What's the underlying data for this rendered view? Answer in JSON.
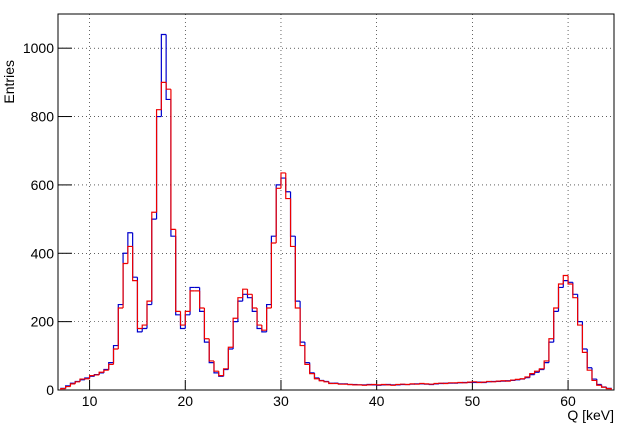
{
  "chart_data": {
    "type": "histogram",
    "xlabel": "Q [keV]",
    "ylabel": "Entries",
    "xlim": [
      6.7,
      64.8
    ],
    "ylim": [
      0,
      1100
    ],
    "xticks": [
      10,
      20,
      30,
      40,
      50,
      60
    ],
    "yticks": [
      0,
      200,
      400,
      600,
      800,
      1000
    ],
    "grid": true,
    "bins": [
      7,
      7.5,
      8,
      8.5,
      9,
      9.5,
      10,
      10.5,
      11,
      11.5,
      12,
      12.5,
      13,
      13.5,
      14,
      14.5,
      15,
      15.5,
      16,
      16.5,
      17,
      17.5,
      18,
      18.5,
      19,
      19.5,
      20,
      20.5,
      21,
      21.5,
      22,
      22.5,
      23,
      23.5,
      24,
      24.5,
      25,
      25.5,
      26,
      26.5,
      27,
      27.5,
      28,
      28.5,
      29,
      29.5,
      30,
      30.5,
      31,
      31.5,
      32,
      32.5,
      33,
      33.5,
      34,
      34.5,
      35,
      35.5,
      36,
      36.5,
      37,
      37.5,
      38,
      38.5,
      39,
      39.5,
      40,
      40.5,
      41,
      41.5,
      42,
      42.5,
      43,
      43.5,
      44,
      44.5,
      45,
      45.5,
      46,
      46.5,
      47,
      47.5,
      48,
      48.5,
      49,
      49.5,
      50,
      50.5,
      51,
      51.5,
      52,
      52.5,
      53,
      53.5,
      54,
      54.5,
      55,
      55.5,
      56,
      56.5,
      57,
      57.5,
      58,
      58.5,
      59,
      59.5,
      60,
      60.5,
      61,
      61.5,
      62,
      62.5,
      63,
      63.5,
      64,
      64.5
    ],
    "series": [
      {
        "color": "#0000cc",
        "values": [
          5,
          12,
          20,
          25,
          30,
          35,
          40,
          45,
          50,
          60,
          80,
          130,
          250,
          400,
          460,
          330,
          170,
          180,
          250,
          500,
          800,
          1040,
          850,
          450,
          220,
          180,
          220,
          300,
          300,
          230,
          140,
          80,
          50,
          40,
          60,
          120,
          200,
          260,
          280,
          270,
          230,
          180,
          170,
          250,
          450,
          600,
          620,
          580,
          450,
          260,
          140,
          80,
          50,
          35,
          28,
          25,
          20,
          20,
          18,
          18,
          16,
          16,
          15,
          15,
          16,
          15,
          14,
          15,
          16,
          15,
          15,
          16,
          16,
          17,
          18,
          18,
          17,
          16,
          18,
          19,
          20,
          20,
          20,
          21,
          22,
          22,
          22,
          23,
          22,
          24,
          25,
          25,
          26,
          27,
          28,
          30,
          32,
          36,
          45,
          52,
          60,
          80,
          140,
          230,
          300,
          320,
          315,
          280,
          200,
          120,
          65,
          32,
          16,
          9,
          5
        ]
      },
      {
        "color": "#ee0000",
        "values": [
          4,
          10,
          18,
          24,
          32,
          33,
          42,
          44,
          52,
          58,
          75,
          120,
          240,
          370,
          420,
          320,
          180,
          190,
          260,
          520,
          820,
          900,
          880,
          470,
          230,
          190,
          230,
          290,
          290,
          240,
          150,
          85,
          55,
          42,
          62,
          125,
          210,
          270,
          295,
          280,
          240,
          190,
          175,
          240,
          430,
          590,
          635,
          560,
          420,
          240,
          130,
          75,
          48,
          33,
          27,
          24,
          19,
          19,
          17,
          17,
          16,
          15,
          15,
          14,
          15,
          16,
          15,
          16,
          15,
          14,
          16,
          17,
          16,
          18,
          17,
          19,
          18,
          17,
          19,
          20,
          19,
          21,
          21,
          22,
          21,
          23,
          24,
          22,
          23,
          25,
          24,
          26,
          27,
          26,
          29,
          31,
          33,
          38,
          48,
          55,
          62,
          85,
          150,
          240,
          310,
          335,
          310,
          270,
          190,
          110,
          58,
          28,
          14,
          8,
          4
        ]
      }
    ]
  }
}
